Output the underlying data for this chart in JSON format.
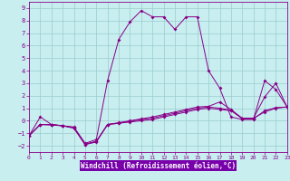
{
  "xlabel": "Windchill (Refroidissement éolien,°C)",
  "xlim": [
    0,
    23
  ],
  "ylim": [
    -2.5,
    9.5
  ],
  "yticks": [
    -2,
    -1,
    0,
    1,
    2,
    3,
    4,
    5,
    6,
    7,
    8,
    9
  ],
  "xticks": [
    0,
    1,
    2,
    3,
    4,
    5,
    6,
    7,
    8,
    9,
    10,
    11,
    12,
    13,
    14,
    15,
    16,
    17,
    18,
    19,
    20,
    21,
    22,
    23
  ],
  "bg_color": "#c8eef0",
  "line_color": "#880088",
  "xlabel_bg": "#7700aa",
  "xlabel_fg": "#ffffff",
  "grid_color": "#99cccc",
  "lines": [
    {
      "x": [
        0,
        1,
        2,
        3,
        4,
        5,
        6,
        7,
        8,
        9,
        10,
        11,
        12,
        13,
        14,
        15,
        16,
        17,
        18,
        19,
        20,
        21,
        22,
        23
      ],
      "y": [
        -1.2,
        0.3,
        -0.3,
        -0.4,
        -0.5,
        -1.8,
        -1.5,
        3.2,
        6.5,
        7.9,
        8.8,
        8.3,
        8.3,
        7.3,
        8.3,
        8.3,
        4.0,
        2.6,
        0.3,
        0.1,
        0.1,
        3.2,
        2.5,
        1.1
      ]
    },
    {
      "x": [
        0,
        1,
        2,
        3,
        4,
        5,
        6,
        7,
        8,
        9,
        10,
        11,
        12,
        13,
        14,
        15,
        16,
        17,
        18,
        19,
        20,
        21,
        22,
        23
      ],
      "y": [
        -1.2,
        -0.3,
        -0.3,
        -0.4,
        -0.55,
        -1.85,
        -1.65,
        -0.3,
        -0.15,
        0.0,
        0.15,
        0.3,
        0.5,
        0.7,
        0.9,
        1.1,
        1.15,
        1.5,
        0.9,
        0.2,
        0.2,
        1.9,
        3.0,
        1.1
      ]
    },
    {
      "x": [
        0,
        1,
        2,
        3,
        4,
        5,
        6,
        7,
        8,
        9,
        10,
        11,
        12,
        13,
        14,
        15,
        16,
        17,
        18,
        19,
        20,
        21,
        22,
        23
      ],
      "y": [
        -1.2,
        -0.3,
        -0.35,
        -0.4,
        -0.55,
        -1.9,
        -1.65,
        -0.3,
        -0.2,
        -0.05,
        0.1,
        0.2,
        0.4,
        0.6,
        0.8,
        1.0,
        1.1,
        1.0,
        0.85,
        0.15,
        0.15,
        0.8,
        1.05,
        1.1
      ]
    },
    {
      "x": [
        0,
        1,
        2,
        3,
        4,
        5,
        6,
        7,
        8,
        9,
        10,
        11,
        12,
        13,
        14,
        15,
        16,
        17,
        18,
        19,
        20,
        21,
        22,
        23
      ],
      "y": [
        -1.2,
        -0.3,
        -0.3,
        -0.4,
        -0.6,
        -1.9,
        -1.7,
        -0.3,
        -0.2,
        -0.1,
        0.0,
        0.1,
        0.3,
        0.5,
        0.7,
        0.9,
        1.0,
        0.9,
        0.8,
        0.2,
        0.2,
        0.7,
        1.0,
        1.1
      ]
    }
  ]
}
